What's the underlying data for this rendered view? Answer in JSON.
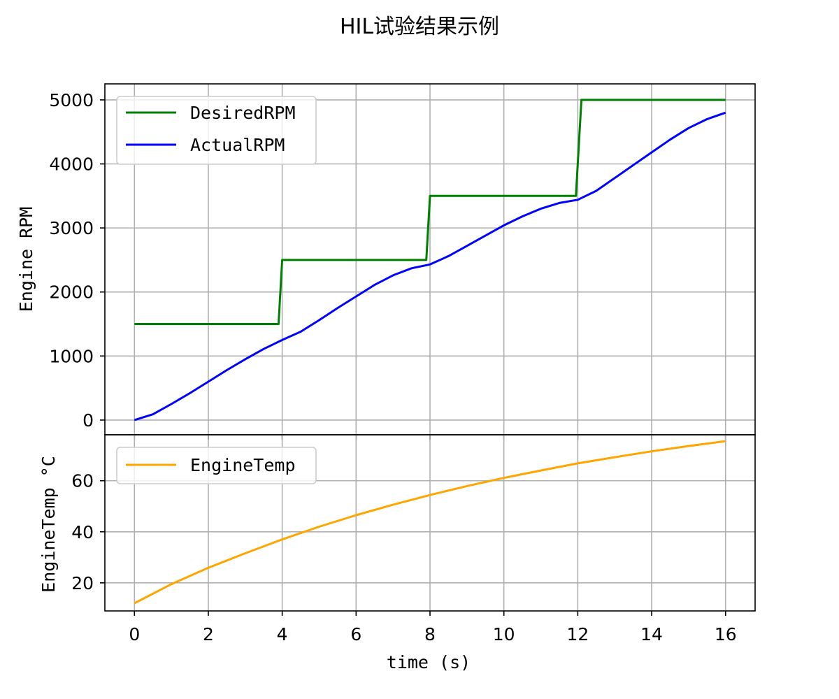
{
  "figure": {
    "title": "HIL试验结果示例"
  },
  "chart_data": [
    {
      "type": "line",
      "title": "",
      "xlabel": "",
      "ylabel": "Engine RPM",
      "xlim": [
        -0.8,
        16.8
      ],
      "ylim": [
        -230,
        5250
      ],
      "grid": true,
      "legend_position": "top-left",
      "xticks": [
        0,
        2,
        4,
        6,
        8,
        10,
        12,
        14,
        16
      ],
      "yticks": [
        0,
        1000,
        2000,
        3000,
        4000,
        5000
      ],
      "series": [
        {
          "name": "DesiredRPM",
          "color": "#008000",
          "x": [
            0,
            3.9,
            4.0,
            7.9,
            8.0,
            11.95,
            12.1,
            16
          ],
          "y": [
            1500,
            1500,
            2500,
            2500,
            3500,
            3500,
            5000,
            5000
          ]
        },
        {
          "name": "ActualRPM",
          "color": "#0000ff",
          "x": [
            0,
            0.5,
            1,
            1.5,
            2,
            2.5,
            3,
            3.5,
            4,
            4.5,
            5,
            5.5,
            6,
            6.5,
            7,
            7.5,
            8,
            8.5,
            9,
            9.5,
            10,
            10.5,
            11,
            11.5,
            12,
            12.5,
            13,
            13.5,
            14,
            14.5,
            15,
            15.5,
            16
          ],
          "y": [
            0,
            90,
            250,
            420,
            600,
            780,
            950,
            1110,
            1250,
            1380,
            1560,
            1750,
            1930,
            2110,
            2260,
            2370,
            2430,
            2560,
            2720,
            2880,
            3040,
            3180,
            3300,
            3390,
            3440,
            3580,
            3780,
            3980,
            4180,
            4380,
            4560,
            4700,
            4800
          ]
        }
      ]
    },
    {
      "type": "line",
      "title": "",
      "xlabel": "time (s)",
      "ylabel": "EngineTemp °C",
      "xlim": [
        -0.8,
        16.8
      ],
      "ylim": [
        9,
        78
      ],
      "grid": true,
      "legend_position": "top-left",
      "xticks": [
        0,
        2,
        4,
        6,
        8,
        10,
        12,
        14,
        16
      ],
      "yticks": [
        20,
        40,
        60
      ],
      "series": [
        {
          "name": "EngineTemp",
          "color": "#ffa500",
          "x": [
            0,
            1,
            2,
            3,
            4,
            5,
            6,
            7,
            8,
            9,
            10,
            11,
            12,
            13,
            14,
            15,
            16
          ],
          "y": [
            12,
            19.5,
            25.9,
            31.6,
            37,
            42,
            46.5,
            50.6,
            54.4,
            57.9,
            61.1,
            64,
            66.8,
            69.2,
            71.5,
            73.6,
            75.5
          ]
        }
      ]
    }
  ]
}
